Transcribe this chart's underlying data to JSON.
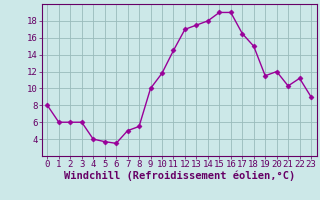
{
  "x": [
    0,
    1,
    2,
    3,
    4,
    5,
    6,
    7,
    8,
    9,
    10,
    11,
    12,
    13,
    14,
    15,
    16,
    17,
    18,
    19,
    20,
    21,
    22,
    23
  ],
  "y": [
    8,
    6,
    6,
    6,
    4,
    3.7,
    3.5,
    5,
    5.5,
    10,
    11.8,
    14.5,
    17,
    17.5,
    18,
    19,
    19,
    16.5,
    15,
    11.5,
    12,
    10.3,
    11.2,
    9
  ],
  "line_color": "#990099",
  "marker": "D",
  "marker_size": 2.5,
  "line_width": 1.0,
  "bg_color": "#cce8e8",
  "grid_color": "#99bbbb",
  "xlabel": "Windchill (Refroidissement éolien,°C)",
  "xlabel_color": "#660066",
  "tick_color": "#660066",
  "ylim": [
    2,
    20
  ],
  "xlim": [
    -0.5,
    23.5
  ],
  "yticks": [
    4,
    6,
    8,
    10,
    12,
    14,
    16,
    18
  ],
  "xticks": [
    0,
    1,
    2,
    3,
    4,
    5,
    6,
    7,
    8,
    9,
    10,
    11,
    12,
    13,
    14,
    15,
    16,
    17,
    18,
    19,
    20,
    21,
    22,
    23
  ],
  "spine_color": "#660066",
  "tick_fontsize": 6.5,
  "xlabel_fontsize": 7.5
}
